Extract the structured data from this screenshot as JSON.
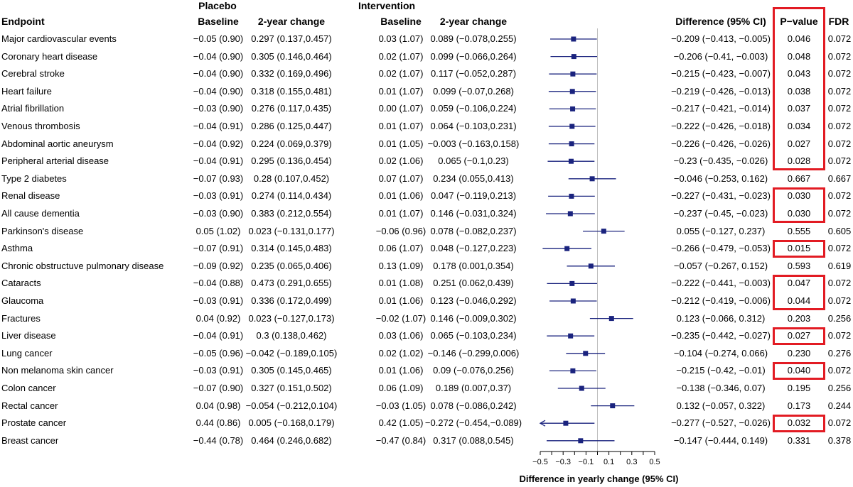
{
  "headers": {
    "endpoint": "Endpoint",
    "placebo": "Placebo",
    "intervention": "Intervention",
    "baseline": "Baseline",
    "change": "2-year change",
    "difference": "Difference (95% CI)",
    "pvalue": "P−value",
    "fdr": "FDR"
  },
  "colors": {
    "marker": "#1a237e",
    "highlight": "#e21b23",
    "refline": "#bdbdbd"
  },
  "chart_data": {
    "type": "forest",
    "title": "",
    "xlabel": "Difference in yearly change (95% CI)",
    "xlim": [
      -0.5,
      0.5
    ],
    "ticks": [
      "-0.5",
      "-0.3",
      "-0.1",
      "0.1",
      "0.3",
      "0.5"
    ],
    "tick_labels": [
      "−0.5",
      "−0.3",
      "−0.1",
      "0.1",
      "0.3",
      "0.5"
    ],
    "reference_line": 0,
    "rows": [
      {
        "endpoint": "Major cardiovascular events",
        "pb": "−0.05 (0.90)",
        "pc": "0.297 (0.137,0.457)",
        "ib": "0.03 (1.07)",
        "ic": "0.089 (−0.078,0.255)",
        "diff": "−0.209 (−0.413, −0.005)",
        "p": "0.046",
        "fdr": "0.072",
        "est": -0.209,
        "lo": -0.413,
        "hi": -0.005,
        "arrow_left": false,
        "highlight": true
      },
      {
        "endpoint": "Coronary heart disease",
        "pb": "−0.04 (0.90)",
        "pc": "0.305 (0.146,0.464)",
        "ib": "0.02 (1.07)",
        "ic": "0.099 (−0.066,0.264)",
        "diff": "−0.206 (−0.41, −0.003)",
        "p": "0.048",
        "fdr": "0.072",
        "est": -0.206,
        "lo": -0.41,
        "hi": -0.003,
        "arrow_left": false,
        "highlight": true
      },
      {
        "endpoint": "Cerebral stroke",
        "pb": "−0.04 (0.90)",
        "pc": "0.332 (0.169,0.496)",
        "ib": "0.02 (1.07)",
        "ic": "0.117 (−0.052,0.287)",
        "diff": "−0.215 (−0.423, −0.007)",
        "p": "0.043",
        "fdr": "0.072",
        "est": -0.215,
        "lo": -0.423,
        "hi": -0.007,
        "arrow_left": false,
        "highlight": true
      },
      {
        "endpoint": "Heart failure",
        "pb": "−0.04 (0.90)",
        "pc": "0.318 (0.155,0.481)",
        "ib": "0.01 (1.07)",
        "ic": "0.099 (−0.07,0.268)",
        "diff": "−0.219 (−0.426, −0.013)",
        "p": "0.038",
        "fdr": "0.072",
        "est": -0.219,
        "lo": -0.426,
        "hi": -0.013,
        "arrow_left": false,
        "highlight": true
      },
      {
        "endpoint": "Atrial fibrillation",
        "pb": "−0.03 (0.90)",
        "pc": "0.276 (0.117,0.435)",
        "ib": "0.00 (1.07)",
        "ic": "0.059 (−0.106,0.224)",
        "diff": "−0.217 (−0.421, −0.014)",
        "p": "0.037",
        "fdr": "0.072",
        "est": -0.217,
        "lo": -0.421,
        "hi": -0.014,
        "arrow_left": false,
        "highlight": true
      },
      {
        "endpoint": "Venous thrombosis",
        "pb": "−0.04 (0.91)",
        "pc": "0.286 (0.125,0.447)",
        "ib": "0.01 (1.07)",
        "ic": "0.064 (−0.103,0.231)",
        "diff": "−0.222 (−0.426, −0.018)",
        "p": "0.034",
        "fdr": "0.072",
        "est": -0.222,
        "lo": -0.426,
        "hi": -0.018,
        "arrow_left": false,
        "highlight": true
      },
      {
        "endpoint": "Abdominal aortic aneurysm",
        "pb": "−0.04 (0.92)",
        "pc": "0.224 (0.069,0.379)",
        "ib": "0.01 (1.05)",
        "ic": "−0.003 (−0.163,0.158)",
        "diff": "−0.226 (−0.426, −0.026)",
        "p": "0.027",
        "fdr": "0.072",
        "est": -0.226,
        "lo": -0.426,
        "hi": -0.026,
        "arrow_left": false,
        "highlight": true
      },
      {
        "endpoint": "Peripheral arterial disease",
        "pb": "−0.04 (0.91)",
        "pc": "0.295 (0.136,0.454)",
        "ib": "0.02 (1.06)",
        "ic": "0.065 (−0.1,0.23)",
        "diff": "−0.23 (−0.435, −0.026)",
        "p": "0.028",
        "fdr": "0.072",
        "est": -0.23,
        "lo": -0.435,
        "hi": -0.026,
        "arrow_left": false,
        "highlight": true
      },
      {
        "endpoint": "Type 2 diabetes",
        "pb": "−0.07 (0.93)",
        "pc": "0.28 (0.107,0.452)",
        "ib": "0.07 (1.07)",
        "ic": "0.234 (0.055,0.413)",
        "diff": "−0.046 (−0.253, 0.162)",
        "p": "0.667",
        "fdr": "0.667",
        "est": -0.046,
        "lo": -0.253,
        "hi": 0.162,
        "arrow_left": false,
        "highlight": false
      },
      {
        "endpoint": "Renal disease",
        "pb": "−0.03 (0.91)",
        "pc": "0.274 (0.114,0.434)",
        "ib": "0.01 (1.06)",
        "ic": "0.047 (−0.119,0.213)",
        "diff": "−0.227 (−0.431, −0.023)",
        "p": "0.030",
        "fdr": "0.072",
        "est": -0.227,
        "lo": -0.431,
        "hi": -0.023,
        "arrow_left": false,
        "highlight": true
      },
      {
        "endpoint": "All cause dementia",
        "pb": "−0.03 (0.90)",
        "pc": "0.383 (0.212,0.554)",
        "ib": "0.01 (1.07)",
        "ic": "0.146 (−0.031,0.324)",
        "diff": "−0.237 (−0.45, −0.023)",
        "p": "0.030",
        "fdr": "0.072",
        "est": -0.237,
        "lo": -0.45,
        "hi": -0.023,
        "arrow_left": false,
        "highlight": true
      },
      {
        "endpoint": "Parkinson's disease",
        "pb": "0.05 (1.02)",
        "pc": "0.023 (−0.131,0.177)",
        "ib": "−0.06 (0.96)",
        "ic": "0.078 (−0.082,0.237)",
        "diff": "0.055 (−0.127, 0.237)",
        "p": "0.555",
        "fdr": "0.605",
        "est": 0.055,
        "lo": -0.127,
        "hi": 0.237,
        "arrow_left": false,
        "highlight": false
      },
      {
        "endpoint": "Asthma",
        "pb": "−0.07 (0.91)",
        "pc": "0.314 (0.145,0.483)",
        "ib": "0.06 (1.07)",
        "ic": "0.048 (−0.127,0.223)",
        "diff": "−0.266 (−0.479, −0.053)",
        "p": "0.015",
        "fdr": "0.072",
        "est": -0.266,
        "lo": -0.479,
        "hi": -0.053,
        "arrow_left": false,
        "highlight": true
      },
      {
        "endpoint": "Chronic obstructuve pulmonary disease",
        "pb": "−0.09 (0.92)",
        "pc": "0.235 (0.065,0.406)",
        "ib": "0.13 (1.09)",
        "ic": "0.178 (0.001,0.354)",
        "diff": "−0.057 (−0.267, 0.152)",
        "p": "0.593",
        "fdr": "0.619",
        "est": -0.057,
        "lo": -0.267,
        "hi": 0.152,
        "arrow_left": false,
        "highlight": false
      },
      {
        "endpoint": "Cataracts",
        "pb": "−0.04 (0.88)",
        "pc": "0.473 (0.291,0.655)",
        "ib": "0.01 (1.08)",
        "ic": "0.251 (0.062,0.439)",
        "diff": "−0.222 (−0.441, −0.003)",
        "p": "0.047",
        "fdr": "0.072",
        "est": -0.222,
        "lo": -0.441,
        "hi": -0.003,
        "arrow_left": false,
        "highlight": true
      },
      {
        "endpoint": "Glaucoma",
        "pb": "−0.03 (0.91)",
        "pc": "0.336 (0.172,0.499)",
        "ib": "0.01 (1.06)",
        "ic": "0.123 (−0.046,0.292)",
        "diff": "−0.212 (−0.419, −0.006)",
        "p": "0.044",
        "fdr": "0.072",
        "est": -0.212,
        "lo": -0.419,
        "hi": -0.006,
        "arrow_left": false,
        "highlight": true
      },
      {
        "endpoint": "Fractures",
        "pb": "0.04 (0.92)",
        "pc": "0.023 (−0.127,0.173)",
        "ib": "−0.02 (1.07)",
        "ic": "0.146 (−0.009,0.302)",
        "diff": "0.123 (−0.066, 0.312)",
        "p": "0.203",
        "fdr": "0.256",
        "est": 0.123,
        "lo": -0.066,
        "hi": 0.312,
        "arrow_left": false,
        "highlight": false
      },
      {
        "endpoint": "Liver disease",
        "pb": "−0.04 (0.91)",
        "pc": "0.3 (0.138,0.462)",
        "ib": "0.03 (1.06)",
        "ic": "0.065 (−0.103,0.234)",
        "diff": "−0.235 (−0.442, −0.027)",
        "p": "0.027",
        "fdr": "0.072",
        "est": -0.235,
        "lo": -0.442,
        "hi": -0.027,
        "arrow_left": false,
        "highlight": true
      },
      {
        "endpoint": "Lung cancer",
        "pb": "−0.05 (0.96)",
        "pc": "−0.042 (−0.189,0.105)",
        "ib": "0.02 (1.02)",
        "ic": "−0.146 (−0.299,0.006)",
        "diff": "−0.104 (−0.274, 0.066)",
        "p": "0.230",
        "fdr": "0.276",
        "est": -0.104,
        "lo": -0.274,
        "hi": 0.066,
        "arrow_left": false,
        "highlight": false
      },
      {
        "endpoint": "Non melanoma skin cancer",
        "pb": "−0.03 (0.91)",
        "pc": "0.305 (0.145,0.465)",
        "ib": "0.01 (1.06)",
        "ic": "0.09 (−0.076,0.256)",
        "diff": "−0.215 (−0.42, −0.01)",
        "p": "0.040",
        "fdr": "0.072",
        "est": -0.215,
        "lo": -0.42,
        "hi": -0.01,
        "arrow_left": false,
        "highlight": true
      },
      {
        "endpoint": "Colon cancer",
        "pb": "−0.07 (0.90)",
        "pc": "0.327 (0.151,0.502)",
        "ib": "0.06 (1.09)",
        "ic": "0.189 (0.007,0.37)",
        "diff": "−0.138 (−0.346, 0.07)",
        "p": "0.195",
        "fdr": "0.256",
        "est": -0.138,
        "lo": -0.346,
        "hi": 0.07,
        "arrow_left": false,
        "highlight": false
      },
      {
        "endpoint": "Rectal cancer",
        "pb": "0.04 (0.98)",
        "pc": "−0.054 (−0.212,0.104)",
        "ib": "−0.03 (1.05)",
        "ic": "0.078 (−0.086,0.242)",
        "diff": "0.132 (−0.057, 0.322)",
        "p": "0.173",
        "fdr": "0.244",
        "est": 0.132,
        "lo": -0.057,
        "hi": 0.322,
        "arrow_left": false,
        "highlight": false
      },
      {
        "endpoint": "Prostate cancer",
        "pb": "0.44 (0.86)",
        "pc": "0.005 (−0.168,0.179)",
        "ib": "0.42 (1.05)",
        "ic": "−0.272 (−0.454,−0.089)",
        "diff": "−0.277 (−0.527, −0.026)",
        "p": "0.032",
        "fdr": "0.072",
        "est": -0.277,
        "lo": -0.527,
        "hi": -0.026,
        "arrow_left": true,
        "highlight": true
      },
      {
        "endpoint": "Breast cancer",
        "pb": "−0.44 (0.78)",
        "pc": "0.464 (0.246,0.682)",
        "ib": "−0.47 (0.84)",
        "ic": "0.317 (0.088,0.545)",
        "diff": "−0.147 (−0.444, 0.149)",
        "p": "0.331",
        "fdr": "0.378",
        "est": -0.147,
        "lo": -0.444,
        "hi": 0.149,
        "arrow_left": false,
        "highlight": false
      }
    ]
  }
}
